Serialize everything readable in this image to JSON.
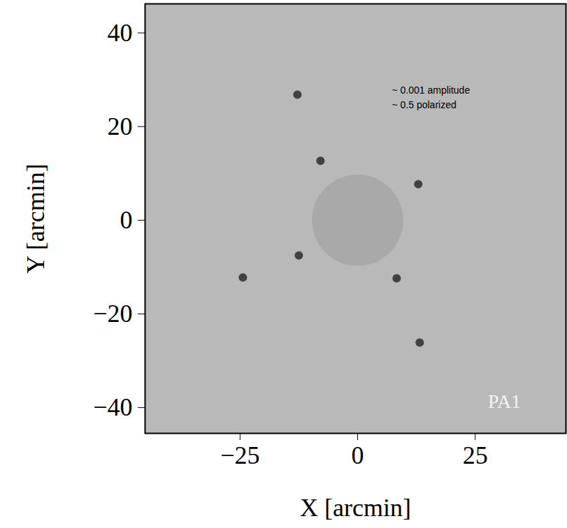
{
  "chart_data": {
    "type": "scatter",
    "xlabel": "X [arcmin]",
    "ylabel": "Y [arcmin]",
    "xlim": [
      -45.2,
      44.3
    ],
    "ylim": [
      -45.5,
      46.2
    ],
    "xticks": [
      -25,
      0,
      25
    ],
    "yticks": [
      -40,
      -20,
      0,
      20,
      40
    ],
    "x": [
      -12.8,
      -7.9,
      12.9,
      -12.5,
      8.3,
      -24.4,
      13.2
    ],
    "y": [
      26.8,
      12.7,
      7.7,
      -7.5,
      -12.4,
      -12.2,
      -26.1
    ],
    "color": "#2b2b2b",
    "mask_radius": 9.7,
    "annotations": [
      "~ 0.001 amplitude",
      "~ 0.5 polarized"
    ],
    "panel_label": "PA1",
    "grid": false
  }
}
